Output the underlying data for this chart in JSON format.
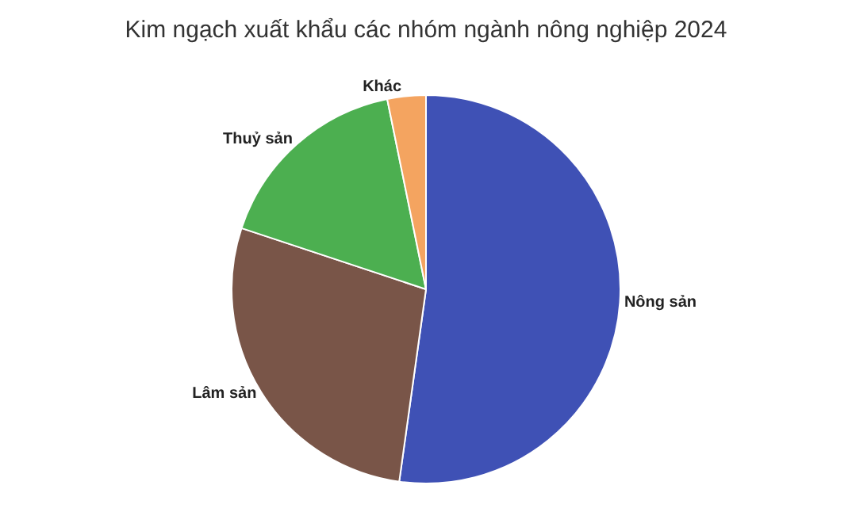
{
  "chart_data": {
    "type": "pie",
    "title": "Kim ngạch xuất khẩu các nhóm ngành nông nghiệp 2024",
    "categories": [
      "Nông sản",
      "Lâm sản",
      "Thuỷ sản",
      "Khác"
    ],
    "values": [
      52.2,
      27.9,
      16.7,
      3.2
    ],
    "colors": [
      "#3f51b5",
      "#795548",
      "#4caf50",
      "#f4a460"
    ],
    "legend": false
  }
}
